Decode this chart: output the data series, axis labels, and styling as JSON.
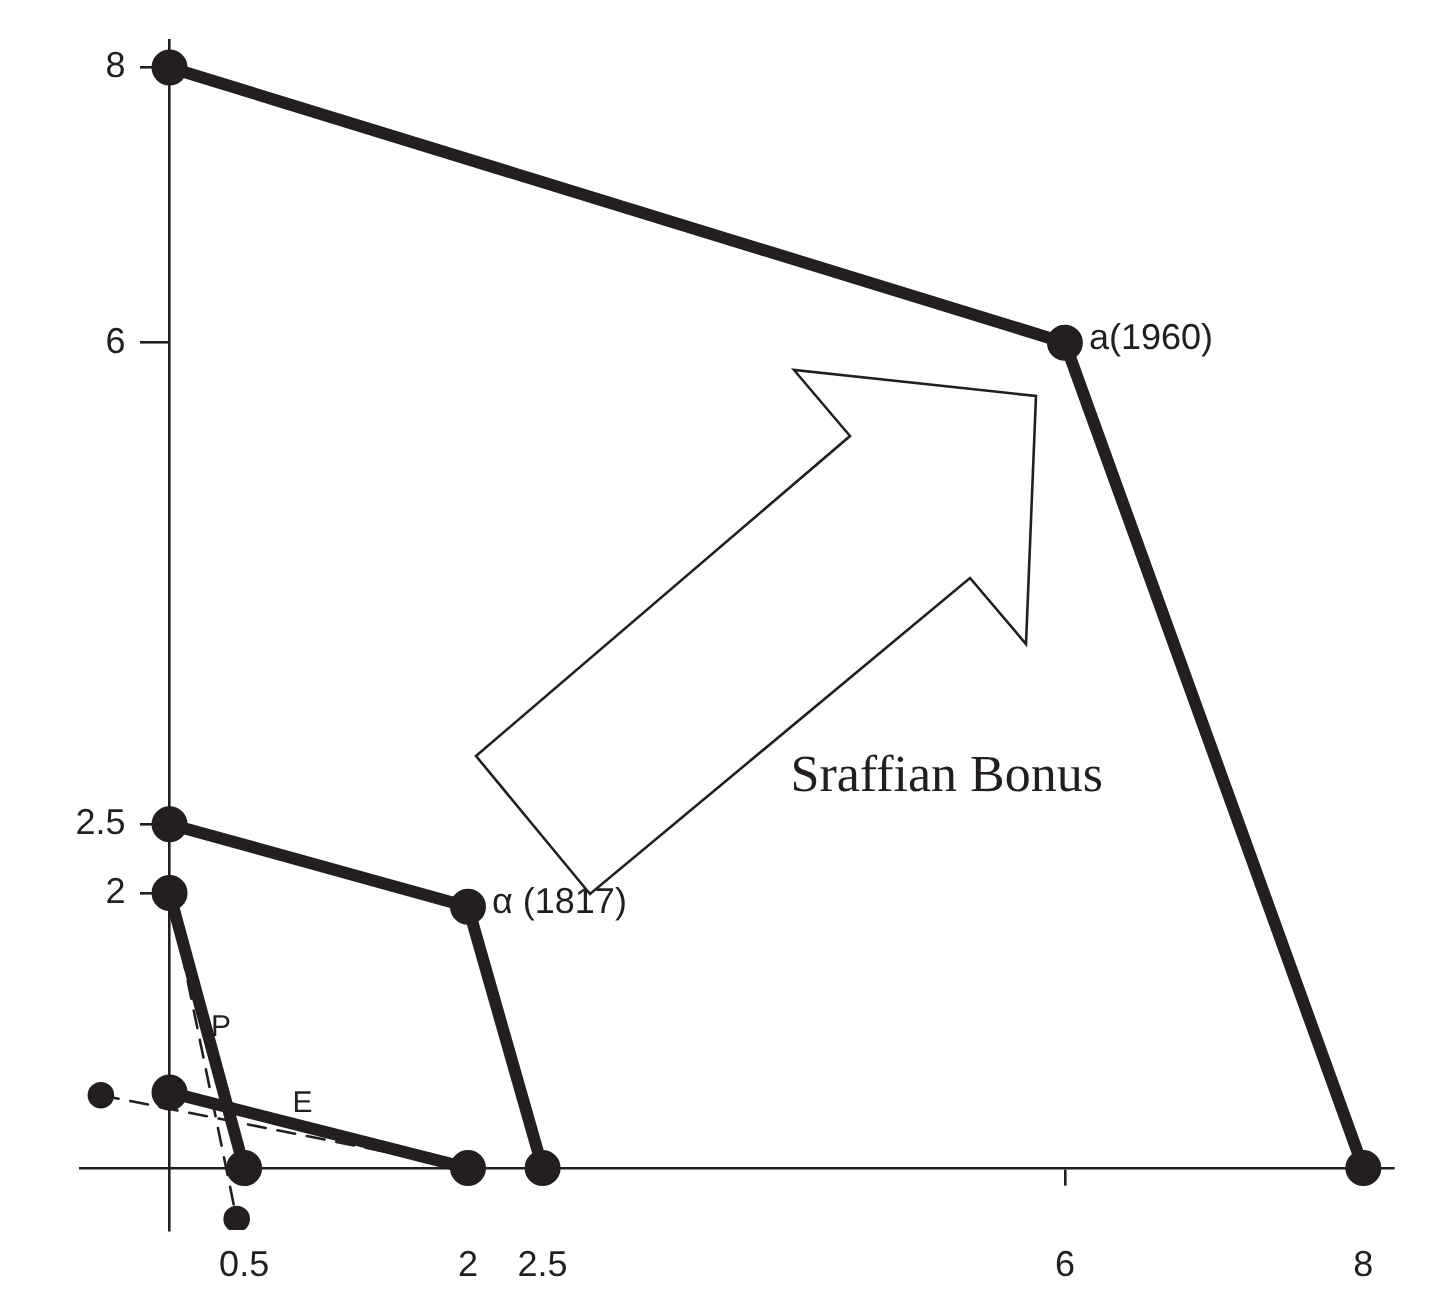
{
  "chart_data": {
    "type": "line",
    "xlim": [
      -0.6,
      8.2
    ],
    "ylim": [
      -0.45,
      8.2
    ],
    "xticks": [
      0.5,
      2,
      2.5,
      6,
      8
    ],
    "yticks": [
      2,
      2.5,
      6,
      8
    ],
    "grid": false,
    "legend": false,
    "marker": "circle",
    "line_style": "solid",
    "series": [
      {
        "x": [
          0,
          6,
          8
        ],
        "values": [
          8,
          6,
          0
        ],
        "color": "#231f20"
      },
      {
        "x": [
          0,
          2,
          2.5
        ],
        "values": [
          2.5,
          1.9,
          0
        ],
        "color": "#231f20"
      },
      {
        "x": [
          0,
          0.5
        ],
        "values": [
          2,
          0
        ],
        "color": "#231f20"
      },
      {
        "x": [
          0,
          2
        ],
        "values": [
          0.55,
          0
        ],
        "color": "#231f20"
      },
      {
        "name": "P",
        "x": [
          0,
          0.45
        ],
        "values": [
          2,
          -0.37
        ],
        "color": "#231f20",
        "line_style": "dashed"
      },
      {
        "name": "E",
        "x": [
          -0.46,
          2
        ],
        "values": [
          0.53,
          0
        ],
        "color": "#231f20",
        "line_style": "dashed"
      }
    ],
    "annotations": [
      {
        "text": "a(1960)",
        "x": 6,
        "y": 6
      },
      {
        "text": "α (1817)",
        "x": 2,
        "y": 1.9
      },
      "Sraffian Bonus"
    ]
  }
}
